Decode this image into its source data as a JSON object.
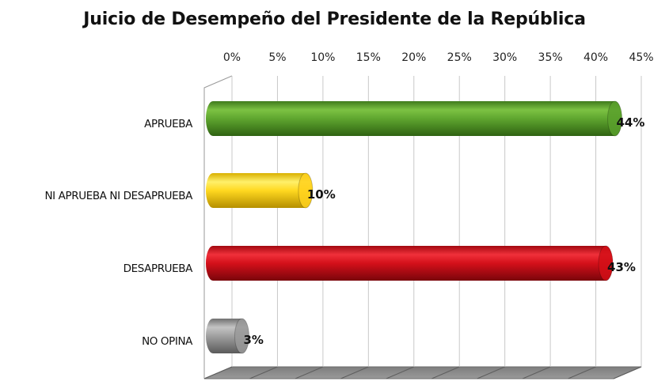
{
  "chart_data": {
    "type": "bar",
    "orientation": "horizontal",
    "title": "Juicio de Desempeño del Presidente de la República",
    "categories": [
      "APRUEBA",
      "NI APRUEBA NI DESAPRUEBA",
      "DESAPRUEBA",
      "NO OPINA"
    ],
    "values": [
      44,
      10,
      43,
      3
    ],
    "data_labels": [
      "44%",
      "10%",
      "43%",
      "3%"
    ],
    "colors": [
      "#5aa02c",
      "#ffd21e",
      "#d40f17",
      "#9a9a9a"
    ],
    "xlim": [
      0,
      45
    ],
    "x_ticks": [
      0,
      5,
      10,
      15,
      20,
      25,
      30,
      35,
      40,
      45
    ],
    "x_tick_labels": [
      "0%",
      "5%",
      "10%",
      "15%",
      "20%",
      "25%",
      "30%",
      "35%",
      "40%",
      "45%"
    ],
    "xaxis_position": "top",
    "grid": true,
    "legend": "none",
    "style": "3d-cylinder"
  }
}
